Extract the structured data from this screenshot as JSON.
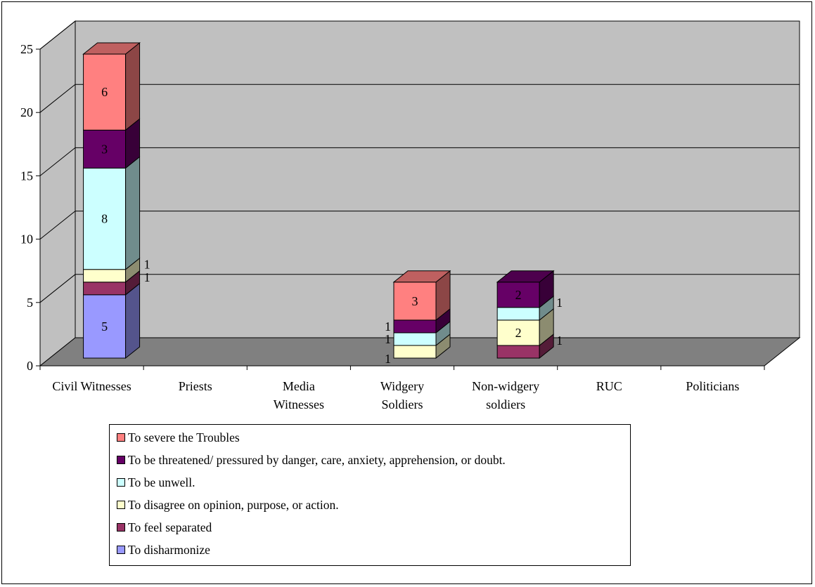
{
  "chart_data": {
    "type": "bar",
    "stacked": true,
    "three_d": true,
    "categories": [
      "Civil Witnesses",
      "Priests",
      "Media\nWitnesses",
      "Widgery\nSoldiers",
      "Non-widgery\nsoldiers",
      "RUC",
      "Politicians"
    ],
    "series": [
      {
        "name": "To disharmonize",
        "color": "#9999FF",
        "values": [
          5,
          0,
          0,
          0,
          0,
          0,
          0
        ],
        "labels": [
          "5",
          "",
          "",
          "",
          "",
          "",
          ""
        ]
      },
      {
        "name": "To feel separated",
        "color": "#993366",
        "values": [
          1,
          0,
          0,
          0,
          1,
          0,
          0
        ],
        "labels": [
          "1",
          "",
          "",
          "",
          "1",
          "",
          ""
        ]
      },
      {
        "name": "To disagree on opinion, purpose, or action.",
        "color": "#FFFFCC",
        "values": [
          1,
          0,
          0,
          1,
          2,
          0,
          0
        ],
        "labels": [
          "1",
          "",
          "",
          "1",
          "2",
          "",
          ""
        ]
      },
      {
        "name": "To be unwell.",
        "color": "#CCFFFF",
        "values": [
          8,
          0,
          0,
          1,
          1,
          0,
          0
        ],
        "labels": [
          "8",
          "",
          "",
          "1",
          "1",
          "",
          ""
        ]
      },
      {
        "name": "To be threatened/ pressured by danger, care, anxiety, apprehension, or doubt.",
        "color": "#660066",
        "values": [
          3,
          0,
          0,
          1,
          2,
          0,
          0
        ],
        "labels": [
          "3",
          "",
          "",
          "1",
          "2",
          "",
          ""
        ]
      },
      {
        "name": "To severe the Troubles",
        "color": "#FF8080",
        "values": [
          6,
          0,
          0,
          3,
          0,
          0,
          0
        ],
        "labels": [
          "6",
          "",
          "",
          "3",
          "",
          "",
          ""
        ]
      }
    ],
    "ylim": [
      0,
      25
    ],
    "yticks": [
      0,
      5,
      10,
      15,
      20,
      25
    ],
    "grid": true,
    "wall_color": "#C0C0C0",
    "floor_color": "#808080",
    "legend_position": "bottom"
  },
  "legend_order": [
    5,
    4,
    3,
    2,
    1,
    0
  ]
}
